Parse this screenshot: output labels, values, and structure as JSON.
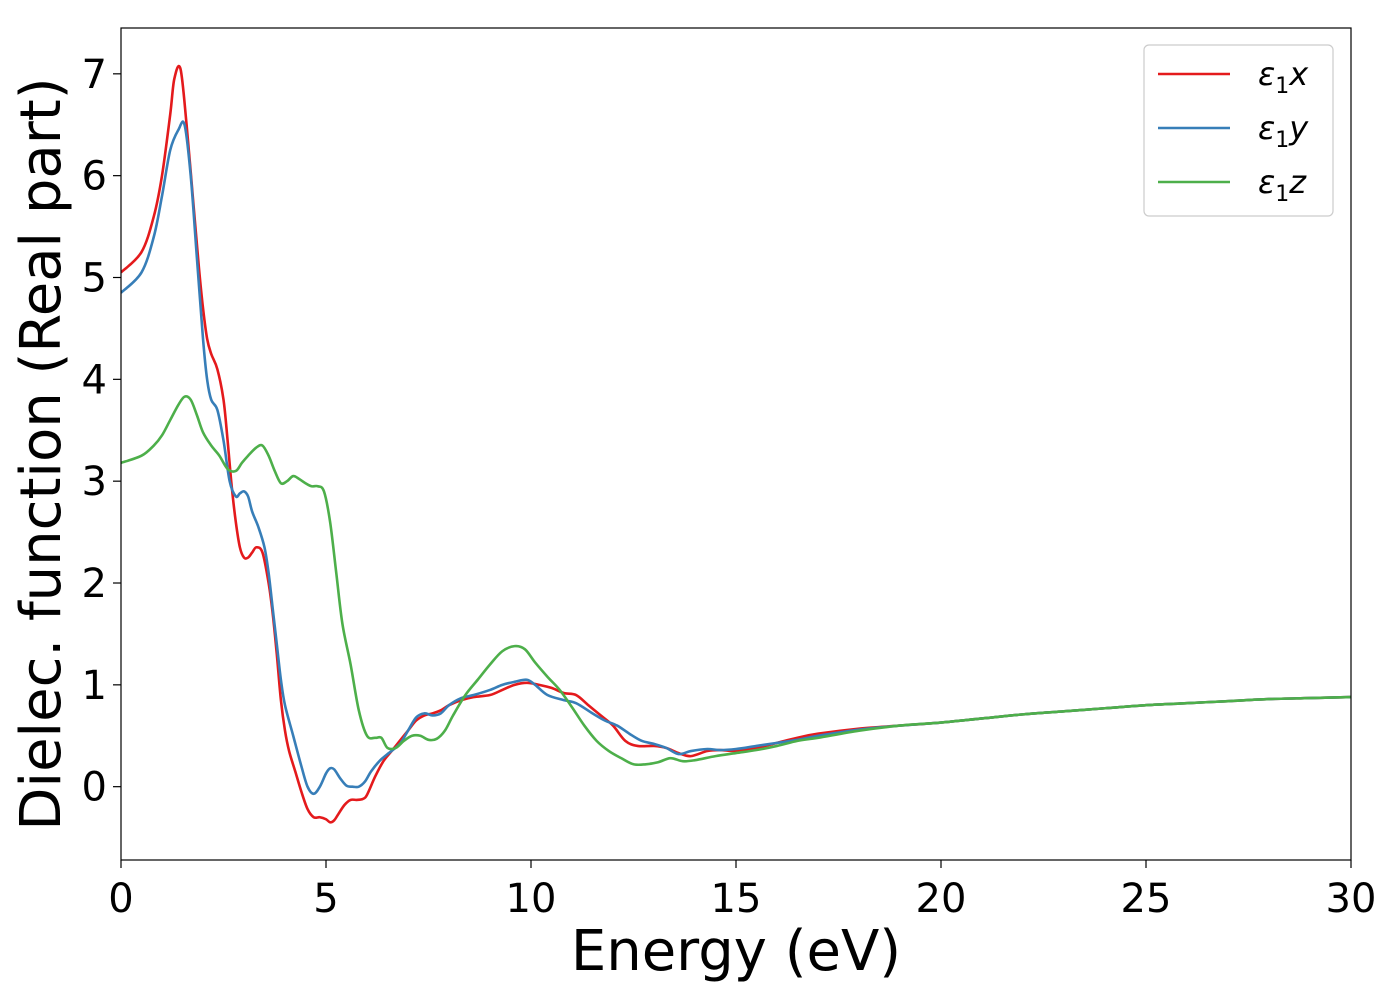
{
  "chart_data": {
    "type": "line",
    "title": "",
    "xlabel": "Energy (eV)",
    "ylabel": "Dielec. function (Real part)",
    "xlim": [
      0,
      30
    ],
    "ylim": [
      -0.72,
      7.45
    ],
    "xticks": [
      0,
      5,
      10,
      15,
      20,
      25,
      30
    ],
    "xtick_labels": [
      "0",
      "5",
      "10",
      "15",
      "20",
      "25",
      "30"
    ],
    "yticks": [
      0,
      1,
      2,
      3,
      4,
      5,
      6,
      7
    ],
    "ytick_labels": [
      "0",
      "1",
      "2",
      "3",
      "4",
      "5",
      "6",
      "7"
    ],
    "grid": false,
    "legend_position": "top-right",
    "series": [
      {
        "name": "ε1x",
        "legend_base": "ε",
        "legend_sub": "1",
        "legend_var": "x",
        "color": "#e41a1c",
        "x": [
          0,
          0.5,
          0.8,
          1.0,
          1.2,
          1.3,
          1.45,
          1.6,
          1.75,
          1.9,
          2.0,
          2.1,
          2.2,
          2.35,
          2.5,
          2.6,
          2.7,
          2.8,
          2.9,
          3.0,
          3.1,
          3.2,
          3.3,
          3.45,
          3.6,
          3.7,
          3.8,
          3.9,
          4.0,
          4.1,
          4.25,
          4.4,
          4.55,
          4.7,
          4.85,
          5.0,
          5.1,
          5.2,
          5.3,
          5.45,
          5.6,
          5.75,
          5.9,
          6.0,
          6.2,
          6.4,
          6.6,
          6.8,
          7.0,
          7.2,
          7.4,
          7.6,
          7.8,
          8.0,
          8.3,
          8.6,
          9.0,
          9.3,
          9.6,
          9.9,
          10.2,
          10.5,
          10.8,
          11.1,
          11.4,
          11.7,
          12.0,
          12.3,
          12.6,
          13.0,
          13.3,
          13.6,
          13.9,
          14.3,
          14.6,
          15.0,
          15.5,
          16.0,
          16.5,
          17.0,
          18.0,
          19.0,
          20.0,
          21.0,
          22.0,
          23.0,
          24.0,
          25.0,
          26.0,
          27.0,
          28.0,
          29.0,
          30.0
        ],
        "y": [
          5.05,
          5.25,
          5.6,
          6.0,
          6.6,
          6.95,
          7.05,
          6.5,
          5.8,
          5.1,
          4.7,
          4.4,
          4.25,
          4.1,
          3.8,
          3.4,
          2.95,
          2.6,
          2.35,
          2.25,
          2.25,
          2.3,
          2.35,
          2.3,
          2.0,
          1.7,
          1.3,
          0.85,
          0.55,
          0.35,
          0.15,
          -0.05,
          -0.22,
          -0.3,
          -0.3,
          -0.32,
          -0.35,
          -0.33,
          -0.27,
          -0.18,
          -0.13,
          -0.13,
          -0.12,
          -0.08,
          0.1,
          0.25,
          0.35,
          0.45,
          0.55,
          0.65,
          0.7,
          0.72,
          0.75,
          0.8,
          0.85,
          0.88,
          0.9,
          0.95,
          1.0,
          1.02,
          1.0,
          0.97,
          0.92,
          0.9,
          0.8,
          0.7,
          0.6,
          0.45,
          0.4,
          0.4,
          0.38,
          0.33,
          0.3,
          0.35,
          0.36,
          0.35,
          0.38,
          0.43,
          0.48,
          0.52,
          0.57,
          0.6,
          0.63,
          0.67,
          0.71,
          0.74,
          0.77,
          0.8,
          0.82,
          0.84,
          0.86,
          0.87,
          0.88
        ]
      },
      {
        "name": "ε1y",
        "legend_base": "ε",
        "legend_sub": "1",
        "legend_var": "y",
        "color": "#377eb8",
        "x": [
          0,
          0.5,
          0.8,
          1.0,
          1.2,
          1.4,
          1.55,
          1.7,
          1.85,
          2.0,
          2.1,
          2.2,
          2.35,
          2.5,
          2.65,
          2.8,
          2.9,
          3.0,
          3.1,
          3.2,
          3.35,
          3.5,
          3.6,
          3.7,
          3.8,
          3.9,
          4.0,
          4.2,
          4.4,
          4.55,
          4.7,
          4.85,
          5.0,
          5.1,
          5.2,
          5.35,
          5.5,
          5.65,
          5.8,
          5.95,
          6.1,
          6.3,
          6.5,
          6.8,
          7.0,
          7.2,
          7.4,
          7.6,
          7.8,
          8.0,
          8.3,
          8.6,
          9.0,
          9.3,
          9.6,
          9.9,
          10.1,
          10.4,
          10.8,
          11.1,
          11.5,
          11.8,
          12.1,
          12.4,
          12.7,
          13.0,
          13.3,
          13.6,
          13.9,
          14.3,
          14.6,
          15.0,
          15.5,
          16.0,
          16.5,
          17.0,
          18.0,
          19.0,
          20.0,
          21.0,
          22.0,
          23.0,
          24.0,
          25.0,
          26.0,
          27.0,
          28.0,
          29.0,
          30.0
        ],
        "y": [
          4.85,
          5.05,
          5.4,
          5.8,
          6.25,
          6.45,
          6.5,
          6.0,
          5.2,
          4.4,
          4.0,
          3.8,
          3.7,
          3.4,
          3.0,
          2.85,
          2.88,
          2.9,
          2.85,
          2.7,
          2.55,
          2.35,
          2.1,
          1.75,
          1.4,
          1.05,
          0.8,
          0.5,
          0.2,
          0.0,
          -0.07,
          0.0,
          0.13,
          0.18,
          0.17,
          0.08,
          0.01,
          0.0,
          0.0,
          0.05,
          0.15,
          0.25,
          0.32,
          0.42,
          0.55,
          0.68,
          0.72,
          0.7,
          0.72,
          0.8,
          0.87,
          0.9,
          0.95,
          1.0,
          1.03,
          1.05,
          1.0,
          0.9,
          0.85,
          0.82,
          0.72,
          0.65,
          0.6,
          0.52,
          0.45,
          0.42,
          0.38,
          0.32,
          0.35,
          0.37,
          0.36,
          0.37,
          0.4,
          0.43,
          0.46,
          0.5,
          0.56,
          0.6,
          0.63,
          0.67,
          0.71,
          0.74,
          0.77,
          0.8,
          0.82,
          0.84,
          0.86,
          0.87,
          0.88
        ]
      },
      {
        "name": "ε1z",
        "legend_base": "ε",
        "legend_sub": "1",
        "legend_var": "z",
        "color": "#4daf4a",
        "x": [
          0,
          0.5,
          0.8,
          1.0,
          1.2,
          1.4,
          1.55,
          1.7,
          1.85,
          2.0,
          2.2,
          2.4,
          2.6,
          2.8,
          2.95,
          3.1,
          3.3,
          3.45,
          3.6,
          3.75,
          3.9,
          4.05,
          4.2,
          4.35,
          4.5,
          4.65,
          4.8,
          4.95,
          5.1,
          5.25,
          5.4,
          5.6,
          5.8,
          6.0,
          6.2,
          6.35,
          6.5,
          6.7,
          6.9,
          7.1,
          7.3,
          7.5,
          7.7,
          7.9,
          8.1,
          8.4,
          8.7,
          9.0,
          9.3,
          9.6,
          9.85,
          10.1,
          10.4,
          10.7,
          11.0,
          11.3,
          11.6,
          11.9,
          12.2,
          12.5,
          12.8,
          13.1,
          13.4,
          13.7,
          14.0,
          14.5,
          15.0,
          15.5,
          16.0,
          16.5,
          17.0,
          18.0,
          19.0,
          20.0,
          21.0,
          22.0,
          23.0,
          24.0,
          25.0,
          26.0,
          27.0,
          28.0,
          29.0,
          30.0
        ],
        "y": [
          3.18,
          3.25,
          3.35,
          3.45,
          3.6,
          3.75,
          3.83,
          3.8,
          3.65,
          3.48,
          3.35,
          3.25,
          3.12,
          3.1,
          3.18,
          3.25,
          3.33,
          3.35,
          3.25,
          3.1,
          2.98,
          3.0,
          3.05,
          3.02,
          2.98,
          2.95,
          2.95,
          2.9,
          2.6,
          2.1,
          1.6,
          1.2,
          0.75,
          0.5,
          0.48,
          0.48,
          0.38,
          0.38,
          0.45,
          0.5,
          0.5,
          0.46,
          0.47,
          0.55,
          0.7,
          0.9,
          1.05,
          1.2,
          1.33,
          1.38,
          1.35,
          1.22,
          1.08,
          0.95,
          0.78,
          0.6,
          0.45,
          0.35,
          0.28,
          0.22,
          0.22,
          0.24,
          0.28,
          0.25,
          0.26,
          0.3,
          0.33,
          0.36,
          0.4,
          0.45,
          0.48,
          0.55,
          0.6,
          0.63,
          0.67,
          0.71,
          0.74,
          0.77,
          0.8,
          0.82,
          0.84,
          0.86,
          0.87,
          0.88
        ]
      }
    ]
  }
}
